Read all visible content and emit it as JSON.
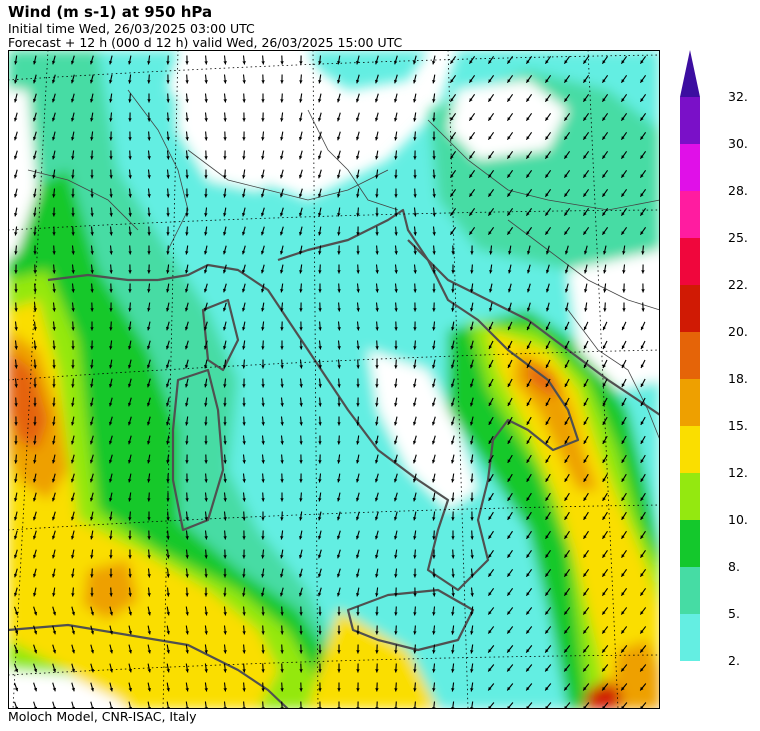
{
  "header": {
    "title": "Wind (m s-1) at 950 hPa",
    "initial_time": "Initial time  Wed, 26/03/2025  03:00 UTC",
    "forecast": "Forecast  +  12 h  (000 d 12 h)  valid Wed, 26/03/2025 15:00 UTC"
  },
  "footer": {
    "credit": "Moloch Model, CNR-ISAC, Italy"
  },
  "colorbar": {
    "labels": [
      "32.",
      "30.",
      "28.",
      "25.",
      "22.",
      "20.",
      "18.",
      "15.",
      "12.",
      "10.",
      "8.",
      "5.",
      "2."
    ],
    "colors": [
      "#7a10c8",
      "#e010e8",
      "#ff1ca0",
      "#f0063c",
      "#d01a04",
      "#e56408",
      "#eea000",
      "#fade00",
      "#94e810",
      "#14c82c",
      "#46dca4",
      "#64eee2"
    ],
    "arrow_color": "#3c0ea0"
  },
  "map": {
    "palette": {
      "land_bg": "#ffffff",
      "calm": "#64eee2",
      "light": "#46dca4",
      "moderate": "#14c82c",
      "fresh": "#94e810",
      "strong": "#fade00",
      "gale": "#eea000",
      "storm": "#e56408",
      "severe": "#d01a04",
      "coast": "#505050",
      "border": "#444444",
      "grid": "#000000",
      "arrow": "#000000"
    }
  }
}
